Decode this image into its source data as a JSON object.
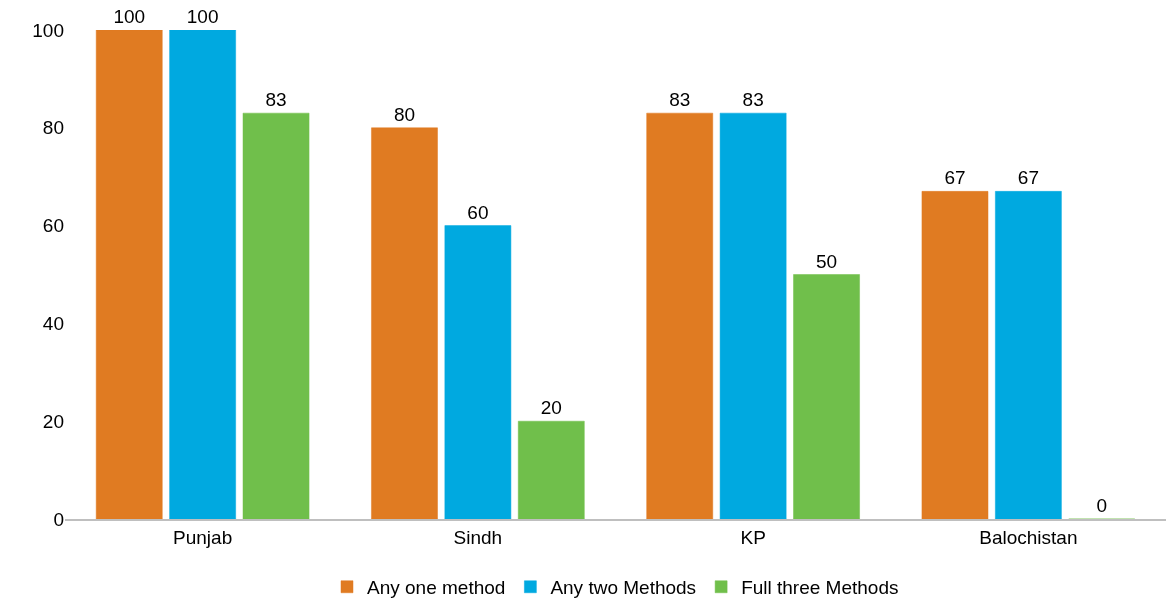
{
  "chart_data": {
    "type": "bar",
    "categories": [
      "Punjab",
      "Sindh",
      "KP",
      "Balochistan"
    ],
    "series": [
      {
        "name": "Any one method",
        "color": "#e07b22",
        "values": [
          100,
          80,
          83,
          67
        ]
      },
      {
        "name": "Any two Methods",
        "color": "#00a9e0",
        "values": [
          100,
          60,
          83,
          67
        ]
      },
      {
        "name": "Full three Methods",
        "color": "#70bf4b",
        "values": [
          83,
          20,
          50,
          0
        ]
      }
    ],
    "ylim": [
      0,
      100
    ],
    "yticks": [
      0,
      20,
      40,
      60,
      80,
      100
    ],
    "data_labels": true,
    "legend": "bottom"
  }
}
